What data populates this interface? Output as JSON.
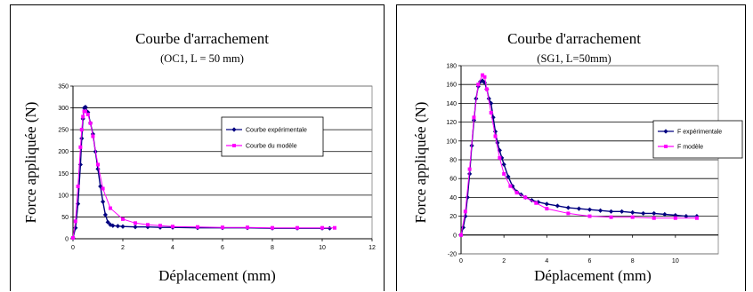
{
  "chart_data": [
    {
      "type": "line",
      "title": "Courbe d'arrachement",
      "subtitle": "(OC1, L = 50 mm)",
      "xlabel": "Déplacement (mm)",
      "ylabel": "Force appliquée (N)",
      "xlim": [
        0,
        12
      ],
      "ylim": [
        0,
        350
      ],
      "xticks": [
        0,
        2,
        4,
        6,
        8,
        10,
        12
      ],
      "yticks": [
        0,
        50,
        100,
        150,
        200,
        250,
        300,
        350
      ],
      "grid": "horizontal",
      "legend": "top-right",
      "series": [
        {
          "name": "Courbe expérimentale",
          "color": "#000080",
          "marker": "diamond",
          "x": [
            0,
            0.1,
            0.2,
            0.3,
            0.35,
            0.4,
            0.45,
            0.5,
            0.6,
            0.7,
            0.8,
            0.9,
            1.0,
            1.1,
            1.2,
            1.3,
            1.4,
            1.5,
            1.6,
            1.8,
            2.0,
            2.5,
            3.0,
            3.5,
            4.0,
            5.0,
            6.0,
            7.0,
            8.0,
            9.0,
            10.0,
            10.3
          ],
          "y": [
            2,
            25,
            80,
            170,
            230,
            275,
            300,
            302,
            290,
            265,
            240,
            200,
            160,
            120,
            85,
            55,
            38,
            32,
            30,
            29,
            28,
            27,
            27,
            26,
            26,
            25,
            25,
            25,
            24,
            24,
            24,
            24
          ]
        },
        {
          "name": "Courbe du modèle",
          "color": "#ff00ff",
          "marker": "square",
          "x": [
            0,
            0.1,
            0.2,
            0.3,
            0.35,
            0.4,
            0.45,
            0.5,
            0.6,
            0.7,
            0.8,
            1.0,
            1.2,
            1.5,
            2.0,
            2.5,
            3.0,
            3.5,
            4.0,
            5.0,
            6.0,
            7.0,
            8.0,
            9.0,
            10.0,
            10.5
          ],
          "y": [
            2,
            40,
            120,
            210,
            250,
            280,
            292,
            292,
            285,
            265,
            235,
            170,
            115,
            70,
            45,
            36,
            32,
            30,
            28,
            27,
            26,
            26,
            25,
            25,
            25,
            25
          ]
        }
      ]
    },
    {
      "type": "line",
      "title": "Courbe d'arrachement",
      "subtitle": "(SG1, L=50mm)",
      "xlabel": "Déplacement (mm)",
      "ylabel": "Force appliquée (N)",
      "xlim": [
        0,
        12
      ],
      "ylim": [
        -20,
        180
      ],
      "xticks": [
        0,
        2,
        4,
        6,
        8,
        10
      ],
      "yticks": [
        -20,
        0,
        20,
        40,
        60,
        80,
        100,
        120,
        140,
        160,
        180
      ],
      "grid": "horizontal",
      "legend": "top-right",
      "series": [
        {
          "name": "F expérimentale",
          "color": "#000080",
          "marker": "diamond",
          "x": [
            0,
            0.1,
            0.2,
            0.3,
            0.4,
            0.5,
            0.6,
            0.7,
            0.8,
            0.9,
            1.0,
            1.1,
            1.2,
            1.3,
            1.4,
            1.5,
            1.6,
            1.7,
            1.8,
            1.9,
            2.0,
            2.2,
            2.4,
            2.6,
            2.8,
            3.0,
            3.3,
            3.6,
            4.0,
            4.5,
            5.0,
            5.5,
            6.0,
            6.5,
            7.0,
            7.5,
            8.0,
            8.5,
            9.0,
            9.5,
            10.0,
            10.5,
            11.0
          ],
          "y": [
            0,
            8,
            20,
            40,
            65,
            95,
            122,
            145,
            158,
            163,
            164,
            162,
            155,
            145,
            140,
            125,
            110,
            98,
            90,
            82,
            75,
            62,
            52,
            46,
            43,
            40,
            37,
            35,
            33,
            31,
            29,
            28,
            27,
            26,
            25,
            25,
            24,
            23,
            23,
            22,
            21,
            20,
            20
          ]
        },
        {
          "name": "F modèle",
          "color": "#ff00ff",
          "marker": "square",
          "x": [
            0,
            0.2,
            0.4,
            0.6,
            0.8,
            1.0,
            1.1,
            1.2,
            1.4,
            1.6,
            1.8,
            2.0,
            2.3,
            2.6,
            3.0,
            3.5,
            4.0,
            5.0,
            6.0,
            7.0,
            8.0,
            9.0,
            10.0,
            11.0
          ],
          "y": [
            0,
            25,
            70,
            125,
            160,
            170,
            168,
            155,
            130,
            105,
            82,
            65,
            52,
            45,
            40,
            34,
            28,
            23,
            20,
            19,
            19,
            18,
            18,
            18
          ]
        }
      ]
    }
  ]
}
